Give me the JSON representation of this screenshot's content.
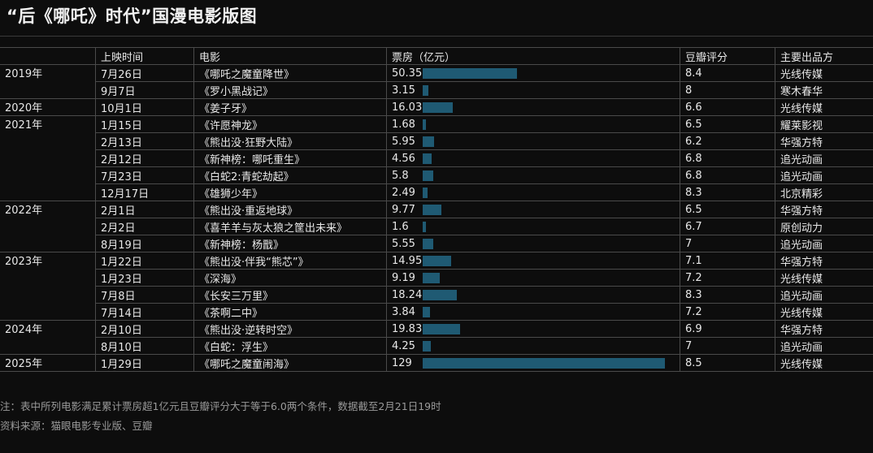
{
  "title": "“后《哪吒》时代”国漫电影版图",
  "headers": {
    "year": "",
    "date": "上映时间",
    "film": "电影",
    "box": "票房（亿元）",
    "score": "豆瓣评分",
    "producer": "主要出品方"
  },
  "colors": {
    "background": "#0d0d0d",
    "bar": "#1f5a73",
    "grid": "#4a4a4a"
  },
  "rows": [
    {
      "year": "2019年",
      "date": "7月26日",
      "film": "《哪吒之魔童降世》",
      "box": "50.35",
      "score": "8.4",
      "producer": "光线传媒"
    },
    {
      "year": "",
      "date": "9月7日",
      "film": "《罗小黑战记》",
      "box": "3.15",
      "score": "8",
      "producer": "寒木春华"
    },
    {
      "year": "2020年",
      "date": "10月1日",
      "film": "《姜子牙》",
      "box": "16.03",
      "score": "6.6",
      "producer": "光线传媒"
    },
    {
      "year": "2021年",
      "date": "1月15日",
      "film": "《许愿神龙》",
      "box": "1.68",
      "score": "6.5",
      "producer": "耀莱影视"
    },
    {
      "year": "",
      "date": "2月13日",
      "film": "《熊出没·狂野大陆》",
      "box": "5.95",
      "score": "6.2",
      "producer": "华强方特"
    },
    {
      "year": "",
      "date": "2月12日",
      "film": "《新神榜：哪吒重生》",
      "box": "4.56",
      "score": "6.8",
      "producer": "追光动画"
    },
    {
      "year": "",
      "date": "7月23日",
      "film": "《白蛇2:青蛇劫起》",
      "box": "5.8",
      "score": "6.8",
      "producer": "追光动画"
    },
    {
      "year": "",
      "date": "12月17日",
      "film": "《雄狮少年》",
      "box": "2.49",
      "score": "8.3",
      "producer": "北京精彩"
    },
    {
      "year": "2022年",
      "date": "2月1日",
      "film": "《熊出没·重返地球》",
      "box": "9.77",
      "score": "6.5",
      "producer": "华强方特"
    },
    {
      "year": "",
      "date": "2月2日",
      "film": "《喜羊羊与灰太狼之筐出未来》",
      "box": "1.6",
      "score": "6.7",
      "producer": "原创动力"
    },
    {
      "year": "",
      "date": "8月19日",
      "film": "《新神榜：杨戬》",
      "box": "5.55",
      "score": "7",
      "producer": "追光动画"
    },
    {
      "year": "2023年",
      "date": "1月22日",
      "film": "《熊出没·伴我“熊芯”》",
      "box": "14.95",
      "score": "7.1",
      "producer": "华强方特"
    },
    {
      "year": "",
      "date": "1月23日",
      "film": "《深海》",
      "box": "9.19",
      "score": "7.2",
      "producer": "光线传媒"
    },
    {
      "year": "",
      "date": "7月8日",
      "film": "《长安三万里》",
      "box": "18.24",
      "score": "8.3",
      "producer": "追光动画"
    },
    {
      "year": "",
      "date": "7月14日",
      "film": "《茶啊二中》",
      "box": "3.84",
      "score": "7.2",
      "producer": "光线传媒"
    },
    {
      "year": "2024年",
      "date": "2月10日",
      "film": "《熊出没·逆转时空》",
      "box": "19.83",
      "score": "6.9",
      "producer": "华强方特"
    },
    {
      "year": "",
      "date": "8月10日",
      "film": "《白蛇：浮生》",
      "box": "4.25",
      "score": "7",
      "producer": "追光动画"
    },
    {
      "year": "2025年",
      "date": "1月29日",
      "film": "《哪吒之魔童闹海》",
      "box": "129",
      "score": "8.5",
      "producer": "光线传媒"
    }
  ],
  "chart_data": {
    "type": "table",
    "bar_column": "票房（亿元）",
    "bar_max": 129
  },
  "note": "注：表中所列电影满足累计票房超1亿元且豆瓣评分大于等于6.0两个条件，数据截至2月21日19时",
  "source": "资料来源：猫眼电影专业版、豆瓣"
}
